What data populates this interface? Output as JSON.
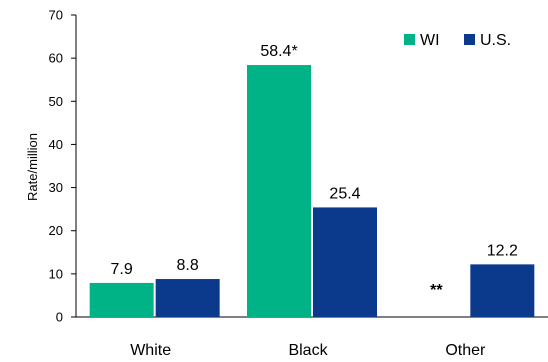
{
  "chart_data": {
    "type": "bar",
    "categories": [
      "White",
      "Black",
      "Other"
    ],
    "series": [
      {
        "name": "WI",
        "color": "#00B386",
        "values": [
          7.9,
          58.4,
          null
        ],
        "labels": [
          "7.9",
          "58.4*",
          "**"
        ]
      },
      {
        "name": "U.S.",
        "color": "#0B3A8C",
        "values": [
          8.8,
          25.4,
          12.2
        ],
        "labels": [
          "8.8",
          "25.4",
          "12.2"
        ]
      }
    ],
    "ylabel": "Rate/million",
    "ylim": [
      0,
      70
    ],
    "yticks": [
      0,
      10,
      20,
      30,
      40,
      50,
      60,
      70
    ],
    "grid": false,
    "legend": "top-right"
  }
}
